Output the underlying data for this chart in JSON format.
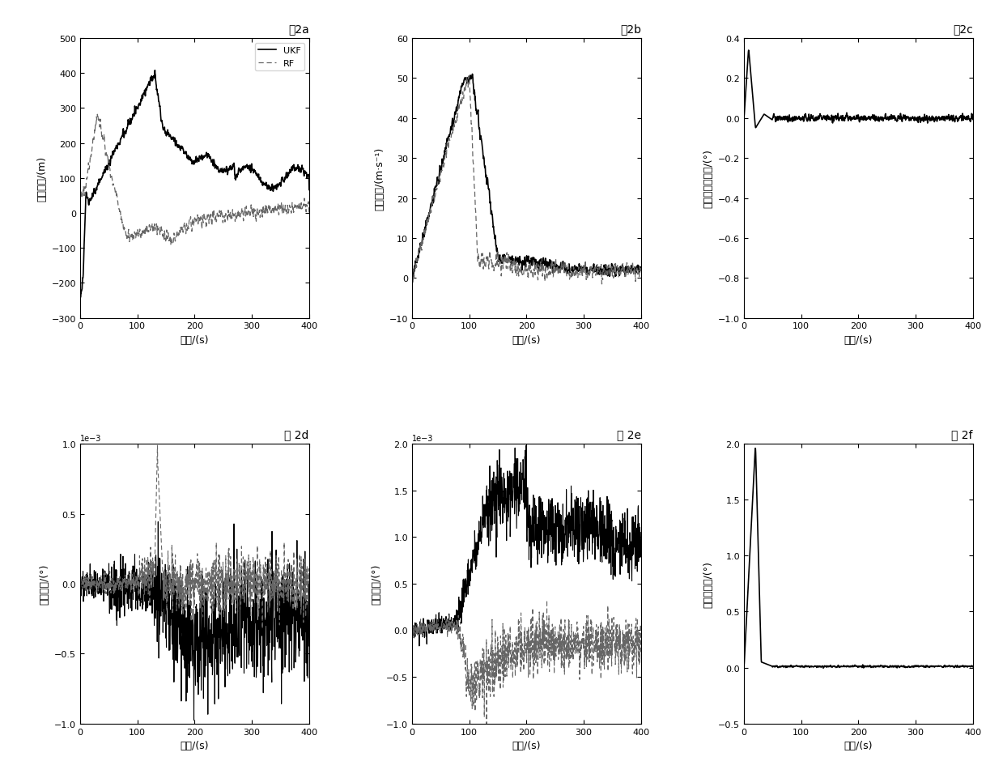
{
  "title_2a": "图2a",
  "title_2b": "图2b",
  "title_2c": "图2c",
  "title_2d": "图 2d",
  "title_2e": "图 2e",
  "title_2f": "图 2f",
  "xlabel_cn": "时间/(s)",
  "xlabel_2b": "时间/(s)",
  "xlabel_2c": "时间/(s)",
  "ylabel_2a": "高度误差/(m)",
  "ylabel_2b": "速度误差/(m·s⁻¹)",
  "ylabel_2c": "飞行路径角误差/(°)",
  "ylabel_2d": "经度误差/(°)",
  "ylabel_2e": "纬度误差/(°)",
  "ylabel_2f": "航向角误差/(°)",
  "legend_ukf": "UKF",
  "legend_rf": "RF",
  "background_color": "#ffffff",
  "seed": 42
}
